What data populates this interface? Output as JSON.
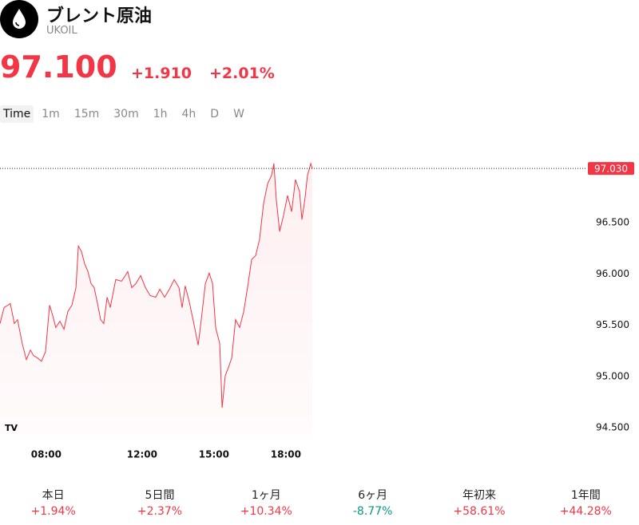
{
  "header": {
    "title": "ブレント原油",
    "symbol": "UKOIL",
    "price": "97.100",
    "change": "+1.910",
    "change_percent": "+2.01%"
  },
  "tabs": [
    "Time",
    "1m",
    "15m",
    "30m",
    "1h",
    "4h",
    "D",
    "W"
  ],
  "chart_data": {
    "type": "line",
    "x": [
      6.07,
      6.24,
      6.4,
      6.5,
      6.67,
      6.8,
      7.0,
      7.17,
      7.34,
      7.47,
      7.64,
      7.8,
      7.97,
      8.14,
      8.27,
      8.4,
      8.57,
      8.74,
      8.9,
      9.07,
      9.24,
      9.34,
      9.47,
      9.6,
      9.74,
      9.87,
      10.0,
      10.14,
      10.27,
      10.4,
      10.54,
      10.67,
      10.9,
      11.14,
      11.3,
      11.4,
      11.57,
      11.74,
      11.94,
      12.14,
      12.34,
      12.57,
      12.74,
      12.94,
      13.14,
      13.34,
      13.54,
      13.67,
      13.8,
      13.97,
      14.14,
      14.34,
      14.47,
      14.64,
      14.8,
      14.94,
      15.07,
      15.24,
      15.34,
      15.47,
      15.6,
      15.74,
      15.9,
      16.07,
      16.24,
      16.4,
      16.57,
      16.74,
      16.9,
      17.07,
      17.24,
      17.4,
      17.5,
      17.6,
      17.74,
      17.9,
      18.07,
      18.24,
      18.4,
      18.57,
      18.67,
      18.8,
      18.9,
      19.04,
      19.1
    ],
    "series": [
      {
        "color": "#f23645",
        "values": [
          95.516,
          95.672,
          95.695,
          95.711,
          95.516,
          95.555,
          95.32,
          95.164,
          95.258,
          95.203,
          95.18,
          95.148,
          95.242,
          95.695,
          95.594,
          95.477,
          95.539,
          95.461,
          95.633,
          95.695,
          95.867,
          96.273,
          96.219,
          96.102,
          96.023,
          95.906,
          95.867,
          95.711,
          95.555,
          95.516,
          95.773,
          95.672,
          95.945,
          95.93,
          95.984,
          96.023,
          95.867,
          95.906,
          95.984,
          95.867,
          95.789,
          95.773,
          95.852,
          95.773,
          95.852,
          95.945,
          95.867,
          95.672,
          95.883,
          95.727,
          95.539,
          95.305,
          95.555,
          95.906,
          96.008,
          95.906,
          95.477,
          95.32,
          94.695,
          95.008,
          95.086,
          95.18,
          95.555,
          95.477,
          95.633,
          95.867,
          96.141,
          96.18,
          96.336,
          96.688,
          96.883,
          96.961,
          97.078,
          96.727,
          96.414,
          96.57,
          96.766,
          96.609,
          96.922,
          96.805,
          96.531,
          96.742,
          96.961,
          97.078,
          97.03
        ]
      }
    ],
    "xlim": [
      6.07,
      30.57
    ],
    "xticks": [
      {
        "value": 8,
        "label": "08:00"
      },
      {
        "value": 12,
        "label": "12:00"
      },
      {
        "value": 15,
        "label": "15:00"
      },
      {
        "value": 18,
        "label": "18:00"
      }
    ],
    "ylim": [
      94.43,
      97.35
    ],
    "yticks": [
      {
        "value": 94.5,
        "label": "94.500"
      },
      {
        "value": 95,
        "label": "95.000"
      },
      {
        "value": 95.5,
        "label": "95.500"
      },
      {
        "value": 96,
        "label": "96.000"
      },
      {
        "value": 96.5,
        "label": "96.500"
      }
    ],
    "last_price": {
      "value": 97.03,
      "label": "97.030"
    }
  },
  "performance": [
    {
      "label": "本日",
      "value": "+1.94%",
      "color": "#f23645"
    },
    {
      "label": "5日間",
      "value": "+2.37%",
      "color": "#f23645"
    },
    {
      "label": "1ヶ月",
      "value": "+10.34%",
      "color": "#f23645"
    },
    {
      "label": "6ヶ月",
      "value": "-8.77%",
      "color": "#089981"
    },
    {
      "label": "年初来",
      "value": "+58.61%",
      "color": "#f23645"
    },
    {
      "label": "1年間",
      "value": "+44.28%",
      "color": "#f23645"
    }
  ]
}
